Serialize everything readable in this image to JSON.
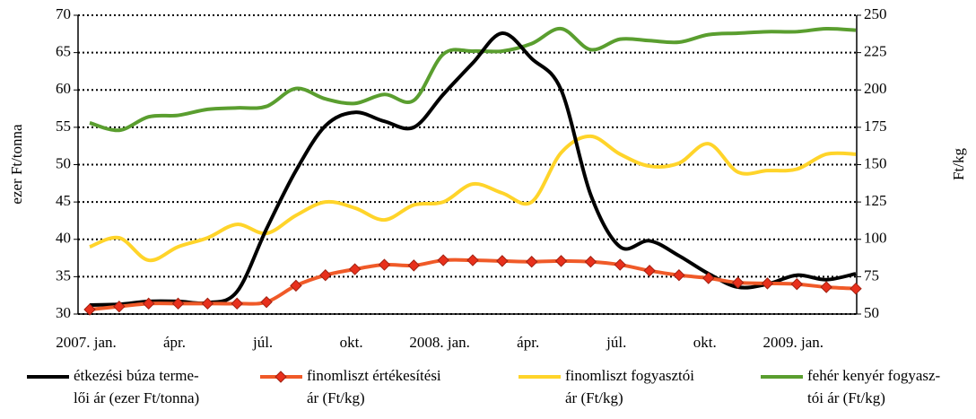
{
  "chart_data": {
    "type": "line",
    "ylabel": "ezer Ft/tonna",
    "y2label": "Ft/kg",
    "categories": [
      "2007. jan.",
      null,
      null,
      "ápr.",
      null,
      null,
      "júl.",
      null,
      null,
      "okt.",
      null,
      null,
      "2008. jan.",
      null,
      null,
      "ápr.",
      null,
      null,
      "júl.",
      null,
      null,
      "okt.",
      null,
      null,
      "2009. jan.",
      null,
      null
    ],
    "ylim": [
      30,
      70
    ],
    "yticks": [
      30,
      35,
      40,
      45,
      50,
      55,
      60,
      65,
      70
    ],
    "y2lim": [
      50,
      250
    ],
    "y2ticks": [
      50,
      75,
      100,
      125,
      150,
      175,
      200,
      225,
      250
    ],
    "grid": true,
    "legend": "bottom",
    "series": [
      {
        "name": "étkezési búza terme-\nlői ár (ezer Ft/tonna)",
        "color": "#000000",
        "marker": "none",
        "values": [
          31.2,
          31.3,
          31.7,
          31.7,
          31.5,
          33,
          41.4,
          49.2,
          55.2,
          57,
          55.8,
          55,
          59.4,
          63.6,
          67.6,
          64.2,
          60,
          46,
          39,
          39.8,
          37.8,
          35.4,
          33.6,
          34,
          35.2,
          34.6,
          35.4
        ]
      },
      {
        "name": "finomliszt értékesítési\nár (Ft/kg)",
        "color": "#f05a28",
        "marker": "diamond",
        "axis": "y2",
        "values": [
          53,
          55,
          57,
          57,
          57,
          57,
          58,
          69,
          76,
          80,
          83,
          82.5,
          86,
          86,
          85.5,
          85,
          85.5,
          85,
          83,
          79,
          76,
          74,
          71,
          70.5,
          70,
          68,
          67
        ]
      },
      {
        "name": "finomliszt fogyasztói\nár (Ft/kg)",
        "color": "#ffd42a",
        "marker": "none",
        "axis": "y2",
        "values": [
          95,
          101,
          86,
          95,
          101,
          110,
          104,
          116,
          125,
          121,
          113,
          123,
          125,
          137,
          131,
          125,
          158,
          169,
          157,
          149,
          151,
          164,
          145,
          146,
          147,
          157,
          157
        ]
      },
      {
        "name": "fehér kenyér fogyasz-\ntói ár (Ft/kg)",
        "color": "#5a9e2f",
        "marker": "none",
        "axis": "y2",
        "values": [
          178,
          173,
          182,
          183,
          187,
          188,
          189,
          201,
          194,
          191,
          197,
          193,
          224,
          226,
          226,
          231,
          241,
          227,
          234,
          233,
          232,
          237,
          238,
          239,
          239,
          241,
          240
        ]
      }
    ]
  }
}
